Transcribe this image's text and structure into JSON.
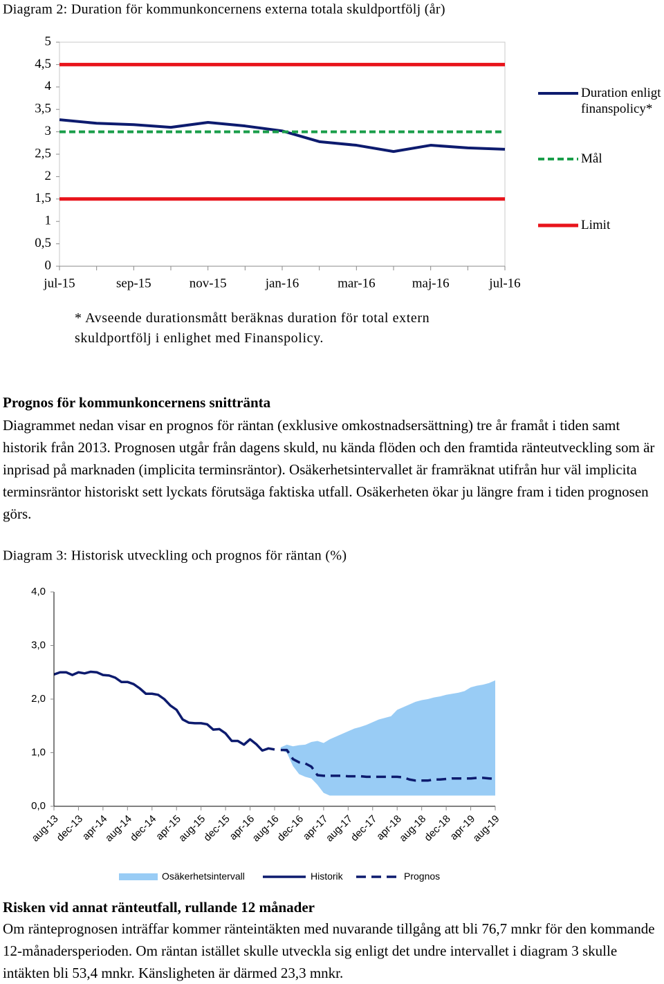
{
  "chart_data": [
    {
      "type": "line",
      "title": "Diagram 2: Duration för kommunkoncernens externa totala skuldportfölj (år)",
      "note": "* Avseende durationsmått beräknas duration för total extern skuldportfölj i enlighet med Finanspolicy.",
      "categories": [
        "jul-15",
        null,
        "sep-15",
        null,
        "nov-15",
        null,
        "jan-16",
        null,
        "mar-16",
        null,
        "maj-16",
        null,
        "jul-16"
      ],
      "series": [
        {
          "name": "Duration enligt finanspolicy*",
          "color": "#0d1b6e",
          "line_style": "solid",
          "values": [
            3.27,
            3.19,
            3.16,
            3.1,
            3.21,
            3.13,
            3.02,
            2.78,
            2.7,
            2.56,
            2.7,
            2.64,
            2.61
          ]
        },
        {
          "name": "Mål",
          "color": "#1a9e4a",
          "line_style": "dashed",
          "values": [
            3,
            3,
            3,
            3,
            3,
            3,
            3,
            3,
            3,
            3,
            3,
            3,
            3
          ]
        },
        {
          "name": "Limit",
          "color": "#e8141b",
          "line_style": "solid",
          "values": [
            4.5,
            4.5,
            4.5,
            4.5,
            4.5,
            4.5,
            4.5,
            4.5,
            4.5,
            4.5,
            4.5,
            4.5,
            4.5
          ]
        },
        {
          "name": null,
          "color": "#e8141b",
          "line_style": "solid",
          "values": [
            1.5,
            1.5,
            1.5,
            1.5,
            1.5,
            1.5,
            1.5,
            1.5,
            1.5,
            1.5,
            1.5,
            1.5,
            1.5
          ]
        }
      ],
      "ylim": [
        0,
        5
      ],
      "yticks": [
        0,
        {
          "value": 0.5,
          "label": "0,5"
        },
        1,
        {
          "value": 1.5,
          "label": "1,5"
        },
        2,
        {
          "value": 2.5,
          "label": "2,5"
        },
        3,
        {
          "value": 3.5,
          "label": "3,5"
        },
        4,
        {
          "value": 4.5,
          "label": "4,5"
        },
        5
      ],
      "grid": false,
      "legend": "right"
    },
    {
      "type": "line",
      "title": "Diagram 3: Historisk utveckling och prognos för räntan (%)",
      "categories": [
        "aug-13",
        null,
        null,
        null,
        "dec-13",
        null,
        null,
        null,
        "apr-14",
        null,
        null,
        null,
        "aug-14",
        null,
        null,
        null,
        "dec-14",
        null,
        null,
        null,
        "apr-15",
        null,
        null,
        null,
        "aug-15",
        null,
        null,
        null,
        "dec-15",
        null,
        null,
        null,
        "apr-16",
        null,
        null,
        null,
        "aug-16",
        null,
        null,
        null,
        "dec-16",
        null,
        null,
        null,
        "apr-17",
        null,
        null,
        null,
        "aug-17",
        null,
        null,
        null,
        "dec-17",
        null,
        null,
        null,
        "apr-18",
        null,
        null,
        null,
        "aug-18",
        null,
        null,
        null,
        "dec-18",
        null,
        null,
        null,
        "apr-19",
        null,
        null,
        null,
        "aug-19"
      ],
      "series": [
        {
          "name": "Osäkerhetsintervall",
          "type": "band",
          "color": "#99ccf5",
          "upper": [
            null,
            null,
            null,
            null,
            null,
            null,
            null,
            null,
            null,
            null,
            null,
            null,
            null,
            null,
            null,
            null,
            null,
            null,
            null,
            null,
            null,
            null,
            null,
            null,
            null,
            null,
            null,
            null,
            null,
            null,
            null,
            null,
            null,
            null,
            null,
            null,
            null,
            1.1,
            1.15,
            1.12,
            1.14,
            1.15,
            1.2,
            1.22,
            1.18,
            1.25,
            1.3,
            1.35,
            1.4,
            1.45,
            1.48,
            1.52,
            1.57,
            1.62,
            1.65,
            1.68,
            1.8,
            1.85,
            1.9,
            1.95,
            1.98,
            2.0,
            2.03,
            2.05,
            2.08,
            2.1,
            2.12,
            2.15,
            2.22,
            2.25,
            2.27,
            2.3,
            2.35
          ],
          "lower": [
            null,
            null,
            null,
            null,
            null,
            null,
            null,
            null,
            null,
            null,
            null,
            null,
            null,
            null,
            null,
            null,
            null,
            null,
            null,
            null,
            null,
            null,
            null,
            null,
            null,
            null,
            null,
            null,
            null,
            null,
            null,
            null,
            null,
            null,
            null,
            null,
            null,
            1.05,
            1.0,
            0.75,
            0.6,
            0.55,
            0.52,
            0.4,
            0.25,
            0.2,
            0.2,
            0.2,
            0.2,
            0.2,
            0.2,
            0.2,
            0.2,
            0.2,
            0.2,
            0.2,
            0.2,
            0.2,
            0.2,
            0.2,
            0.2,
            0.2,
            0.2,
            0.2,
            0.2,
            0.2,
            0.2,
            0.2,
            0.2,
            0.2,
            0.2,
            0.2,
            0.2
          ]
        },
        {
          "name": "Historik",
          "color": "#0d1b6e",
          "line_style": "solid",
          "values": [
            2.46,
            2.5,
            2.5,
            2.45,
            2.5,
            2.48,
            2.51,
            2.5,
            2.45,
            2.44,
            2.4,
            2.32,
            2.32,
            2.28,
            2.2,
            2.1,
            2.1,
            2.08,
            2.0,
            1.88,
            1.8,
            1.62,
            1.56,
            1.55,
            1.55,
            1.53,
            1.43,
            1.44,
            1.36,
            1.22,
            1.22,
            1.15,
            1.25,
            1.16,
            1.04,
            1.08,
            1.06,
            null,
            null,
            null,
            null,
            null,
            null,
            null,
            null,
            null,
            null,
            null,
            null,
            null,
            null,
            null,
            null,
            null,
            null,
            null,
            null,
            null,
            null,
            null,
            null,
            null,
            null,
            null,
            null,
            null,
            null,
            null,
            null,
            null,
            null,
            null,
            null
          ]
        },
        {
          "name": "Prognos",
          "color": "#0d1b6e",
          "line_style": "dashed",
          "values": [
            null,
            null,
            null,
            null,
            null,
            null,
            null,
            null,
            null,
            null,
            null,
            null,
            null,
            null,
            null,
            null,
            null,
            null,
            null,
            null,
            null,
            null,
            null,
            null,
            null,
            null,
            null,
            null,
            null,
            null,
            null,
            null,
            null,
            null,
            null,
            null,
            null,
            1.05,
            1.05,
            0.88,
            0.82,
            0.8,
            0.74,
            0.58,
            0.57,
            0.57,
            0.57,
            0.57,
            0.56,
            0.56,
            0.56,
            0.55,
            0.55,
            0.55,
            0.55,
            0.55,
            0.55,
            0.54,
            0.5,
            0.48,
            0.48,
            0.48,
            0.5,
            0.5,
            0.51,
            0.52,
            0.52,
            0.52,
            0.52,
            0.53,
            0.53,
            0.52,
            0.51
          ]
        }
      ],
      "ylim": [
        0,
        4
      ],
      "yticks": [
        {
          "value": 0,
          "label": "0,0"
        },
        {
          "value": 1,
          "label": "1,0"
        },
        {
          "value": 2,
          "label": "2,0"
        },
        {
          "value": 3,
          "label": "3,0"
        },
        {
          "value": 4,
          "label": "4,0"
        }
      ],
      "grid": false,
      "legend": "bottom"
    }
  ],
  "document": {
    "heading_1": "Prognos för kommunkoncernens snittränta",
    "paragraph_1": "Diagrammet nedan visar en prognos för räntan (exklusive omkostnadsersättning) tre år framåt i tiden samt historik från 2013. Prognosen utgår från dagens skuld, nu kända flöden och den framtida ränteutveckling som är inprisad på marknaden (implicita terminsräntor). Osäkerhetsintervallet är framräknat utifrån  hur väl implicita terminsräntor historiskt sett lyckats förutsäga faktiska utfall. Osäkerheten ökar ju längre fram i tiden prognosen görs.",
    "heading_2": "Risken vid annat ränteutfall, rullande 12 månader",
    "paragraph_2": "Om ränteprognosen inträffar kommer ränteintäkten med nuvarande tillgång att bli 76,7 mnkr för den kommande 12-månadersperioden. Om räntan istället skulle utveckla sig enligt det undre intervallet i diagram 3 skulle intäkten bli 53,4 mnkr. Känsligheten är därmed 23,3 mnkr."
  }
}
